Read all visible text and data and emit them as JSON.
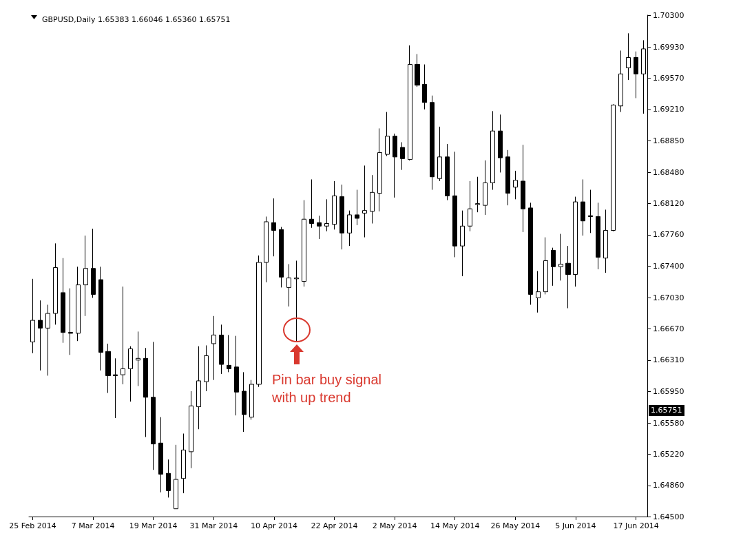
{
  "chart_data": {
    "type": "candlestick",
    "title": "GBPUSD,Daily 1.65383 1.66046 1.65360 1.65751",
    "categories": [
      "25 Feb 2014",
      null,
      null,
      null,
      null,
      null,
      null,
      null,
      "7 Mar 2014",
      null,
      null,
      null,
      null,
      null,
      null,
      null,
      "19 Mar 2014",
      null,
      null,
      null,
      null,
      null,
      null,
      null,
      "31 Mar 2014",
      null,
      null,
      null,
      null,
      null,
      null,
      null,
      "10 Apr 2014",
      null,
      null,
      null,
      null,
      null,
      null,
      null,
      "22 Apr 2014",
      null,
      null,
      null,
      null,
      null,
      null,
      null,
      "2 May 2014",
      null,
      null,
      null,
      null,
      null,
      null,
      null,
      "14 May 2014",
      null,
      null,
      null,
      null,
      null,
      null,
      null,
      "26 May 2014",
      null,
      null,
      null,
      null,
      null,
      null,
      null,
      "5 Jun 2014",
      null,
      null,
      null,
      null,
      null,
      null,
      null,
      "17 Jun 2014",
      null
    ],
    "ohlc": [
      [
        1.6652,
        1.6725,
        1.6639,
        1.6677
      ],
      [
        1.6677,
        1.67,
        1.6619,
        1.6668
      ],
      [
        1.6668,
        1.6695,
        1.6613,
        1.6685
      ],
      [
        1.6685,
        1.6766,
        1.6672,
        1.6738
      ],
      [
        1.6709,
        1.6749,
        1.6651,
        1.6663
      ],
      [
        1.6663,
        1.6714,
        1.6637,
        1.6662
      ],
      [
        1.6662,
        1.6739,
        1.6653,
        1.6718
      ],
      [
        1.6718,
        1.6775,
        1.6682,
        1.6737
      ],
      [
        1.6737,
        1.6783,
        1.6703,
        1.6707
      ],
      [
        1.6724,
        1.6739,
        1.6619,
        1.664
      ],
      [
        1.6641,
        1.665,
        1.6593,
        1.6613
      ],
      [
        1.6614,
        1.6633,
        1.6564,
        1.6613
      ],
      [
        1.6614,
        1.6716,
        1.6603,
        1.6621
      ],
      [
        1.6621,
        1.6647,
        1.6583,
        1.6644
      ],
      [
        1.6631,
        1.6664,
        1.6601,
        1.6633
      ],
      [
        1.6633,
        1.6645,
        1.6542,
        1.6588
      ],
      [
        1.6588,
        1.6652,
        1.6504,
        1.6534
      ],
      [
        1.6535,
        1.6565,
        1.6478,
        1.6499
      ],
      [
        1.65,
        1.6516,
        1.6472,
        1.648
      ],
      [
        1.6459,
        1.6533,
        1.6459,
        1.6493
      ],
      [
        1.6494,
        1.6546,
        1.6477,
        1.6527
      ],
      [
        1.6525,
        1.6595,
        1.6506,
        1.6578
      ],
      [
        1.6577,
        1.6647,
        1.6551,
        1.6607
      ],
      [
        1.6606,
        1.6648,
        1.6595,
        1.6636
      ],
      [
        1.665,
        1.6682,
        1.6608,
        1.666
      ],
      [
        1.666,
        1.6672,
        1.6615,
        1.6626
      ],
      [
        1.6625,
        1.666,
        1.6617,
        1.6621
      ],
      [
        1.6623,
        1.6659,
        1.6567,
        1.6594
      ],
      [
        1.6595,
        1.6617,
        1.6548,
        1.6568
      ],
      [
        1.6565,
        1.6608,
        1.6562,
        1.6603
      ],
      [
        1.6603,
        1.6752,
        1.66,
        1.6744
      ],
      [
        1.6744,
        1.6797,
        1.6721,
        1.6791
      ],
      [
        1.679,
        1.6818,
        1.6751,
        1.6781
      ],
      [
        1.6782,
        1.6785,
        1.6715,
        1.6727
      ],
      [
        1.6715,
        1.6742,
        1.6693,
        1.6726
      ],
      [
        1.6725,
        1.6746,
        1.6652,
        1.6726
      ],
      [
        1.6722,
        1.6816,
        1.6716,
        1.6794
      ],
      [
        1.6794,
        1.684,
        1.6784,
        1.6789
      ],
      [
        1.679,
        1.6798,
        1.6771,
        1.6786
      ],
      [
        1.6786,
        1.6817,
        1.678,
        1.6789
      ],
      [
        1.6788,
        1.6838,
        1.6782,
        1.6821
      ],
      [
        1.682,
        1.6834,
        1.6759,
        1.6778
      ],
      [
        1.6778,
        1.6804,
        1.6763,
        1.6799
      ],
      [
        1.6799,
        1.6828,
        1.6787,
        1.6795
      ],
      [
        1.6801,
        1.6856,
        1.6773,
        1.6804
      ],
      [
        1.6803,
        1.6845,
        1.6789,
        1.6825
      ],
      [
        1.6824,
        1.6899,
        1.6803,
        1.6871
      ],
      [
        1.6869,
        1.6918,
        1.6867,
        1.689
      ],
      [
        1.689,
        1.6893,
        1.6819,
        1.6866
      ],
      [
        1.6877,
        1.6883,
        1.6851,
        1.6864
      ],
      [
        1.6863,
        1.6995,
        1.6862,
        1.6973
      ],
      [
        1.6973,
        1.6985,
        1.6947,
        1.6949
      ],
      [
        1.695,
        1.6973,
        1.6921,
        1.6929
      ],
      [
        1.6929,
        1.6937,
        1.6828,
        1.6843
      ],
      [
        1.6841,
        1.6901,
        1.6838,
        1.6866
      ],
      [
        1.6866,
        1.6881,
        1.6816,
        1.6821
      ],
      [
        1.6821,
        1.6872,
        1.675,
        1.6763
      ],
      [
        1.6763,
        1.6804,
        1.6728,
        1.6786
      ],
      [
        1.6786,
        1.6838,
        1.678,
        1.6806
      ],
      [
        1.6811,
        1.6843,
        1.6802,
        1.6812
      ],
      [
        1.681,
        1.6862,
        1.6799,
        1.6836
      ],
      [
        1.6836,
        1.6919,
        1.6828,
        1.6896
      ],
      [
        1.6896,
        1.6915,
        1.6848,
        1.6865
      ],
      [
        1.6866,
        1.6874,
        1.681,
        1.6824
      ],
      [
        1.6831,
        1.685,
        1.6817,
        1.6839
      ],
      [
        1.6838,
        1.688,
        1.6779,
        1.6806
      ],
      [
        1.6807,
        1.6813,
        1.6695,
        1.6707
      ],
      [
        1.6703,
        1.6734,
        1.6686,
        1.671
      ],
      [
        1.671,
        1.6773,
        1.6707,
        1.6746
      ],
      [
        1.6758,
        1.6761,
        1.6717,
        1.6739
      ],
      [
        1.6739,
        1.6777,
        1.6723,
        1.6742
      ],
      [
        1.6743,
        1.6763,
        1.6691,
        1.673
      ],
      [
        1.673,
        1.682,
        1.6716,
        1.6814
      ],
      [
        1.6814,
        1.684,
        1.6775,
        1.6792
      ],
      [
        1.6798,
        1.6828,
        1.6778,
        1.6797
      ],
      [
        1.6797,
        1.6813,
        1.6736,
        1.675
      ],
      [
        1.6749,
        1.6805,
        1.6732,
        1.6781
      ],
      [
        1.6781,
        1.6927,
        1.678,
        1.6926
      ],
      [
        1.6925,
        1.6989,
        1.6918,
        1.6962
      ],
      [
        1.6969,
        1.7009,
        1.6955,
        1.6981
      ],
      [
        1.6981,
        1.6988,
        1.6934,
        1.6962
      ],
      [
        1.6962,
        1.7001,
        1.6916,
        1.6991
      ]
    ],
    "ylim": [
      1.645,
      1.703
    ],
    "yticks": [
      {
        "value": 1.645,
        "label": "1.64500"
      },
      {
        "value": 1.6486,
        "label": "1.64860"
      },
      {
        "value": 1.6522,
        "label": "1.65220"
      },
      {
        "value": 1.6558,
        "label": "1.65580"
      },
      {
        "value": 1.6595,
        "label": "1.65950"
      },
      {
        "value": 1.6631,
        "label": "1.66310"
      },
      {
        "value": 1.6667,
        "label": "1.66670"
      },
      {
        "value": 1.6703,
        "label": "1.67030"
      },
      {
        "value": 1.674,
        "label": "1.67400"
      },
      {
        "value": 1.6776,
        "label": "1.67760"
      },
      {
        "value": 1.6812,
        "label": "1.68120"
      },
      {
        "value": 1.6848,
        "label": "1.68480"
      },
      {
        "value": 1.6885,
        "label": "1.68850"
      },
      {
        "value": 1.6921,
        "label": "1.69210"
      },
      {
        "value": 1.6957,
        "label": "1.69570"
      },
      {
        "value": 1.6993,
        "label": "1.69930"
      },
      {
        "value": 1.703,
        "label": "1.70300"
      }
    ],
    "annotations": [
      "Pin bar buy signal\nwith up trend",
      "1.65751"
    ],
    "grid": false
  }
}
